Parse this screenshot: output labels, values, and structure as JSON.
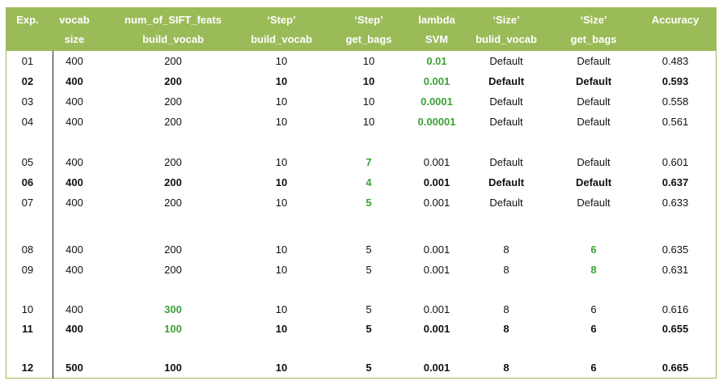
{
  "colors": {
    "header_bg": "#9bbb59",
    "header_text": "#ffffff",
    "highlight": "#3aa136",
    "text": "#111111"
  },
  "columns": [
    {
      "key": "exp",
      "line1": "Exp.",
      "line2": ""
    },
    {
      "key": "vocab_size",
      "line1": "vocab",
      "line2": "size"
    },
    {
      "key": "num_sift",
      "line1": "num_of_SIFT_feats",
      "line2": "build_vocab"
    },
    {
      "key": "step_build",
      "line1": "‘Step’",
      "line2": "build_vocab"
    },
    {
      "key": "step_get",
      "line1": "‘Step’",
      "line2": "get_bags"
    },
    {
      "key": "lambda",
      "line1": "lambda",
      "line2": "SVM"
    },
    {
      "key": "size_build",
      "line1": "‘Size’",
      "line2": "bulid_vocab"
    },
    {
      "key": "size_get",
      "line1": "‘Size’",
      "line2": "get_bags"
    },
    {
      "key": "accuracy",
      "line1": "Accuracy",
      "line2": ""
    }
  ],
  "rows": [
    {
      "bold": false,
      "green": [
        "lambda"
      ],
      "values": [
        "01",
        "400",
        "200",
        "10",
        "10",
        "0.01",
        "Default",
        "Default",
        "0.483"
      ]
    },
    {
      "bold": true,
      "green": [
        "lambda"
      ],
      "values": [
        "02",
        "400",
        "200",
        "10",
        "10",
        "0.001",
        "Default",
        "Default",
        "0.593"
      ]
    },
    {
      "bold": false,
      "green": [
        "lambda"
      ],
      "values": [
        "03",
        "400",
        "200",
        "10",
        "10",
        "0.0001",
        "Default",
        "Default",
        "0.558"
      ]
    },
    {
      "bold": false,
      "green": [
        "lambda"
      ],
      "values": [
        "04",
        "400",
        "200",
        "10",
        "10",
        "0.00001",
        "Default",
        "Default",
        "0.561"
      ]
    },
    {
      "bold": false,
      "green": [
        "step_get"
      ],
      "values": [
        "05",
        "400",
        "200",
        "10",
        "7",
        "0.001",
        "Default",
        "Default",
        "0.601"
      ]
    },
    {
      "bold": true,
      "green": [
        "step_get"
      ],
      "values": [
        "06",
        "400",
        "200",
        "10",
        "4",
        "0.001",
        "Default",
        "Default",
        "0.637"
      ]
    },
    {
      "bold": false,
      "green": [
        "step_get"
      ],
      "values": [
        "07",
        "400",
        "200",
        "10",
        "5",
        "0.001",
        "Default",
        "Default",
        "0.633"
      ]
    },
    {
      "bold": false,
      "green": [
        "size_get"
      ],
      "values": [
        "08",
        "400",
        "200",
        "10",
        "5",
        "0.001",
        "8",
        "6",
        "0.635"
      ]
    },
    {
      "bold": false,
      "green": [
        "size_get"
      ],
      "values": [
        "09",
        "400",
        "200",
        "10",
        "5",
        "0.001",
        "8",
        "8",
        "0.631"
      ]
    },
    {
      "bold": false,
      "green": [
        "num_sift"
      ],
      "values": [
        "10",
        "400",
        "300",
        "10",
        "5",
        "0.001",
        "8",
        "6",
        "0.616"
      ]
    },
    {
      "bold": true,
      "green": [
        "num_sift"
      ],
      "values": [
        "11",
        "400",
        "100",
        "10",
        "5",
        "0.001",
        "8",
        "6",
        "0.655"
      ]
    },
    {
      "bold": true,
      "green": [],
      "values": [
        "12",
        "500",
        "100",
        "10",
        "5",
        "0.001",
        "8",
        "6",
        "0.665"
      ]
    }
  ]
}
